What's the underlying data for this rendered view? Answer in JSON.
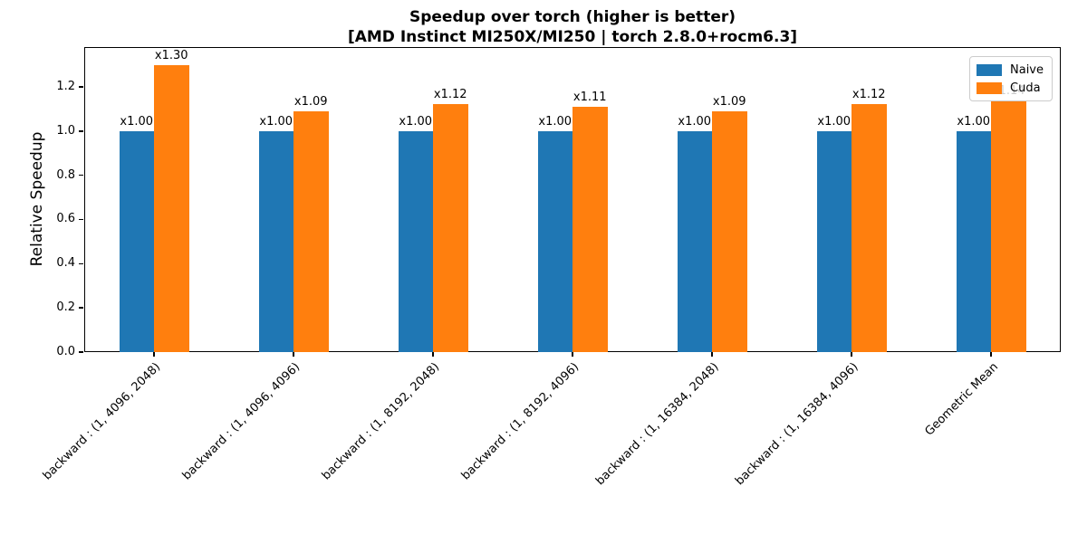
{
  "chart_data": {
    "type": "bar",
    "title_lines": [
      "Speedup over torch (higher is better)",
      "[AMD Instinct MI250X/MI250 | torch 2.8.0+rocm6.3]"
    ],
    "ylabel": "Relative Speedup",
    "xlabel": "",
    "categories": [
      "backward : (1, 4096, 2048)",
      "backward : (1, 4096, 4096)",
      "backward : (1, 8192, 2048)",
      "backward : (1, 8192, 4096)",
      "backward : (1, 16384, 2048)",
      "backward : (1, 16384, 4096)",
      "Geometric Mean"
    ],
    "series": [
      {
        "name": "Naive",
        "color": "#1f77b4",
        "values": [
          1.0,
          1.0,
          1.0,
          1.0,
          1.0,
          1.0,
          1.0
        ]
      },
      {
        "name": "Cuda",
        "color": "#ff7f0e",
        "values": [
          1.3,
          1.09,
          1.12,
          1.11,
          1.09,
          1.12,
          1.14
        ]
      }
    ],
    "bar_labels": {
      "prefix": "x",
      "decimals": 2
    },
    "ylim": [
      0,
      1.38
    ],
    "yticks": [
      0.0,
      0.2,
      0.4,
      0.6,
      0.8,
      1.0,
      1.2
    ],
    "ytick_decimals": 1,
    "bar_width_units": 0.25,
    "grid": false,
    "legend": {
      "position": "upper right",
      "entries": [
        "Naive",
        "Cuda"
      ]
    },
    "colors": {
      "axis": "#000000",
      "text": "#000000",
      "legend_border": "#cccccc",
      "background": "#ffffff"
    }
  }
}
